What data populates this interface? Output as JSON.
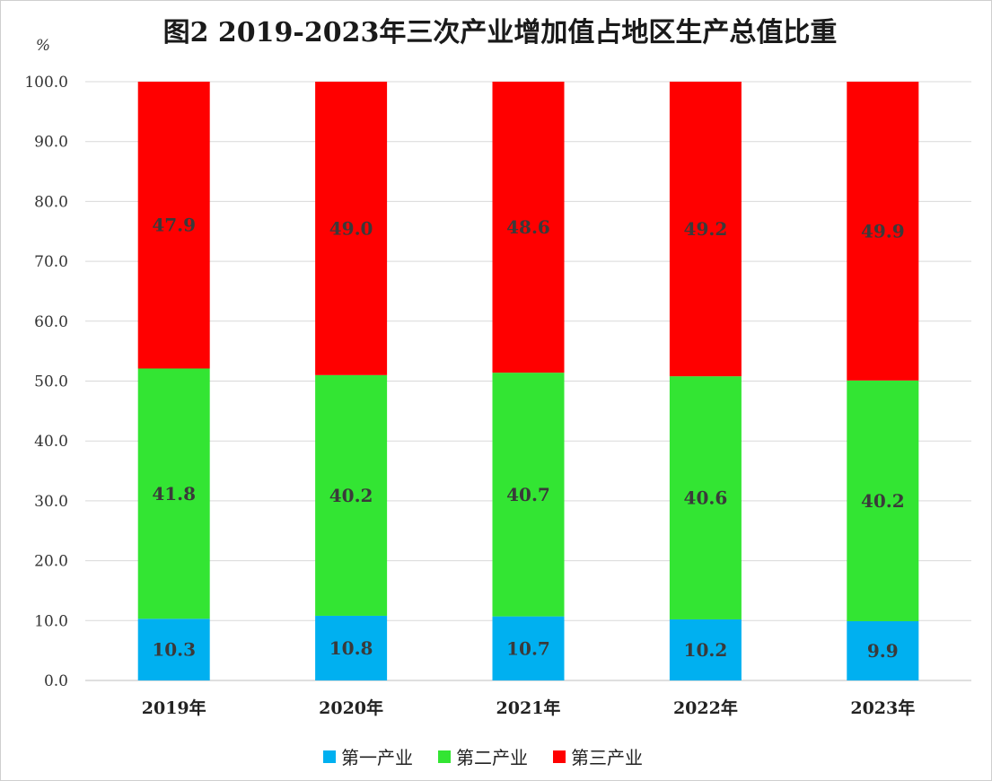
{
  "chart_data": {
    "type": "bar",
    "stacked": true,
    "title": "图2 2019-2023年三次产业增加值占地区生产总值比重",
    "ylabel": "%",
    "xlabel": "",
    "ylim": [
      0,
      100
    ],
    "yticks": [
      "0.0",
      "10.0",
      "20.0",
      "30.0",
      "40.0",
      "50.0",
      "60.0",
      "70.0",
      "80.0",
      "90.0",
      "100.0"
    ],
    "categories": [
      "2019年",
      "2020年",
      "2021年",
      "2022年",
      "2023年"
    ],
    "series": [
      {
        "name": "第一产业",
        "color": "#00b0f0",
        "values": [
          10.3,
          10.8,
          10.7,
          10.2,
          9.9
        ],
        "labels": [
          "10.3",
          "10.8",
          "10.7",
          "10.2",
          "9.9"
        ]
      },
      {
        "name": "第二产业",
        "color": "#33e533",
        "values": [
          41.8,
          40.2,
          40.7,
          40.6,
          40.2
        ],
        "labels": [
          "41.8",
          "40.2",
          "40.7",
          "40.6",
          "40.2"
        ]
      },
      {
        "name": "第三产业",
        "color": "#ff0000",
        "values": [
          47.9,
          49.0,
          48.6,
          49.2,
          49.9
        ],
        "labels": [
          "47.9",
          "49.0",
          "48.6",
          "49.2",
          "49.9"
        ]
      }
    ],
    "grid": true,
    "legend_position": "bottom-center"
  }
}
